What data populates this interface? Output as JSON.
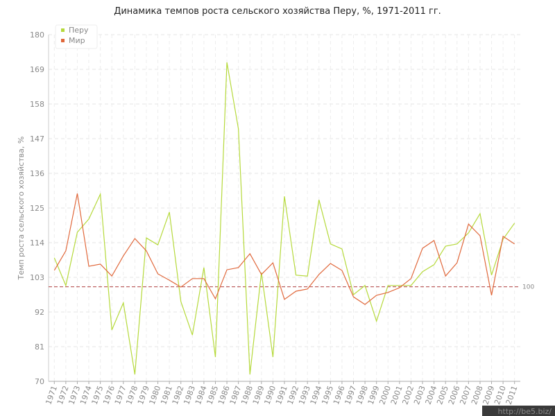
{
  "chart_data": {
    "type": "line",
    "title": "Динамика темпов роста сельского хозяйства Перу, %, 1971-2011 гг.",
    "y_label": "Темп роста сельского хозяйства, %",
    "categories": [
      "1971",
      "1972",
      "1973",
      "1974",
      "1975",
      "1976",
      "1977",
      "1978",
      "1979",
      "1980",
      "1981",
      "1982",
      "1983",
      "1984",
      "1985",
      "1986",
      "1987",
      "1988",
      "1989",
      "1990",
      "1991",
      "1992",
      "1993",
      "1994",
      "1995",
      "1996",
      "1997",
      "1998",
      "1999",
      "2000",
      "2001",
      "2002",
      "2003",
      "2004",
      "2005",
      "2006",
      "2007",
      "2008",
      "2009",
      "2010",
      "2011"
    ],
    "series": [
      {
        "name": "Перу",
        "color": "#b5d93a",
        "values": [
          109.2,
          100.4,
          117.3,
          121.5,
          129.4,
          86.3,
          94.9,
          72.2,
          115.5,
          113.3,
          123.7,
          95.3,
          84.7,
          106.1,
          77.7,
          171.2,
          150.1,
          72.2,
          104.5,
          77.7,
          128.7,
          103.7,
          103.4,
          127.6,
          113.6,
          112.0,
          97.5,
          100.4,
          89.1,
          100.4,
          100.4,
          100.4,
          104.8,
          107.0,
          112.9,
          113.6,
          117.1,
          123.2,
          103.7,
          115.1,
          120.2
        ]
      },
      {
        "name": "Мир",
        "color": "#e0673a",
        "values": [
          105.2,
          111.4,
          129.6,
          106.5,
          107.2,
          103.4,
          109.8,
          115.3,
          111.4,
          104.1,
          102.1,
          99.9,
          102.6,
          102.6,
          96.2,
          105.4,
          106.1,
          110.5,
          103.9,
          107.6,
          96.0,
          98.6,
          99.3,
          103.9,
          107.4,
          105.2,
          96.8,
          94.4,
          97.3,
          98.2,
          99.7,
          102.6,
          112.2,
          114.7,
          103.4,
          107.6,
          119.9,
          116.2,
          97.3,
          116.0,
          113.6
        ]
      }
    ],
    "reference_line": {
      "value": 100,
      "color": "#b04040"
    },
    "ylim": [
      70,
      180
    ],
    "yticks": [
      70,
      81,
      92,
      103,
      114,
      125,
      136,
      147,
      158,
      169,
      180
    ],
    "grid": true,
    "legend": "top-left",
    "watermark": "http://be5.biz/"
  }
}
